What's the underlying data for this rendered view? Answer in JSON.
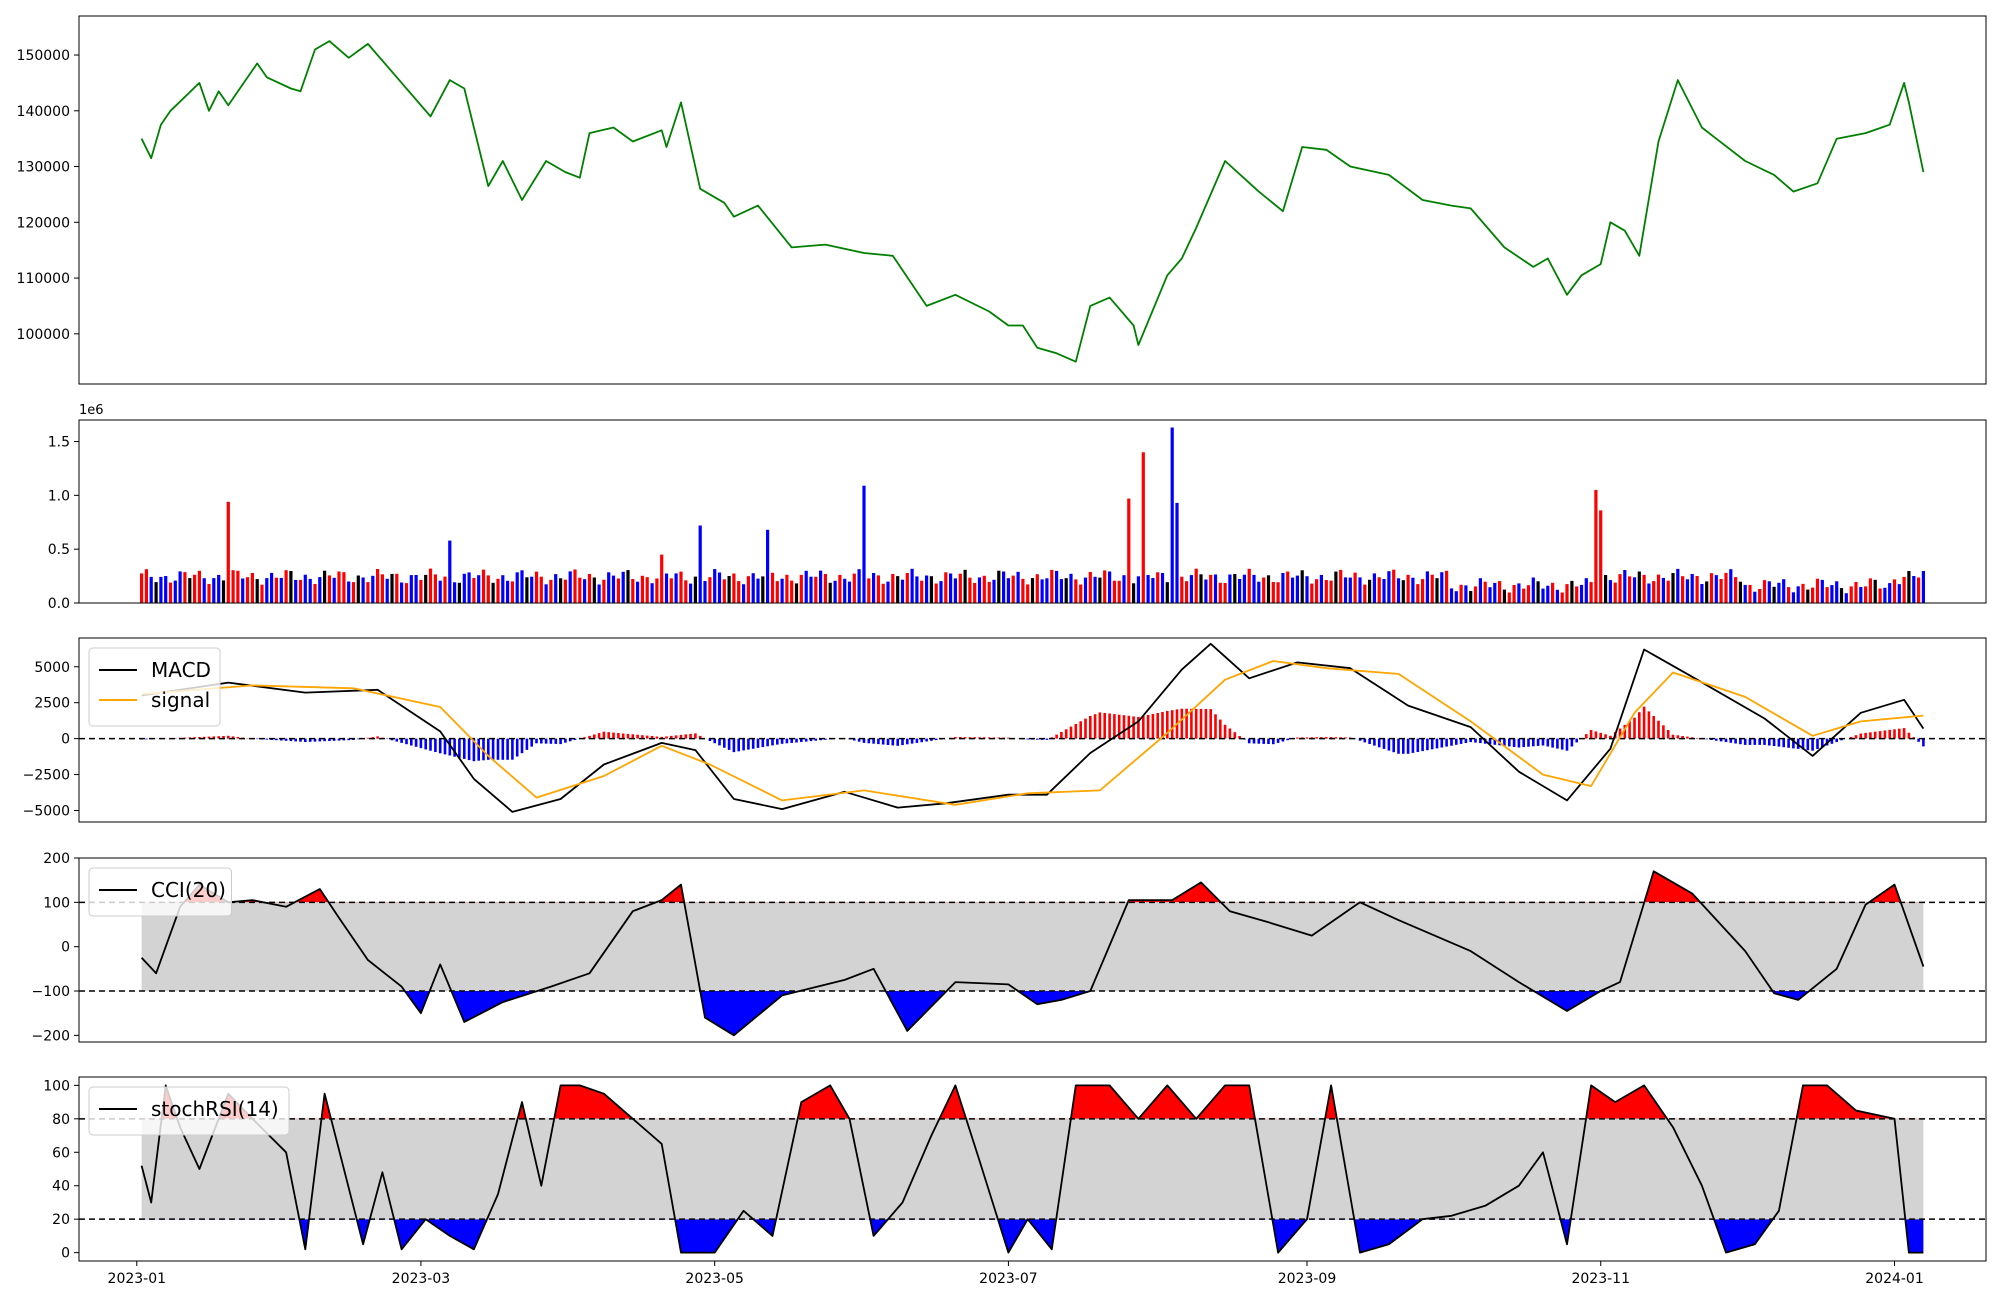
{
  "colors": {
    "price_line": "#008000",
    "volume_up": "#ff0000",
    "volume_down": "#0000ff",
    "volume_flat": "#000000",
    "macd_line": "#000000",
    "signal_line": "#ffa500",
    "hist_pos": "#ff0000",
    "hist_neg": "#0000ff",
    "band_fill": "#d3d3d3",
    "overbought_fill": "#ff0000",
    "oversold_fill": "#0000ff",
    "indicator_line": "#000000"
  },
  "chart_data": [
    {
      "type": "line",
      "panel": "price",
      "ylim": [
        91000,
        157000
      ],
      "yticks": [
        100000,
        110000,
        120000,
        130000,
        140000,
        150000
      ],
      "ytick_labels": [
        "100000",
        "110000",
        "120000",
        "130000",
        "140000",
        "150000"
      ],
      "series": [
        {
          "x": [
            "2023-01-02",
            "2023-01-04",
            "2023-01-06",
            "2023-01-08",
            "2023-01-14",
            "2023-01-16",
            "2023-01-18",
            "2023-01-20",
            "2023-01-26",
            "2023-01-28",
            "2023-02-02",
            "2023-02-04",
            "2023-02-07",
            "2023-02-10",
            "2023-02-14",
            "2023-02-18",
            "2023-02-22",
            "2023-02-24",
            "2023-03-03",
            "2023-03-07",
            "2023-03-10",
            "2023-03-15",
            "2023-03-18",
            "2023-03-22",
            "2023-03-27",
            "2023-03-31",
            "2023-04-03",
            "2023-04-05",
            "2023-04-10",
            "2023-04-14",
            "2023-04-20",
            "2023-04-21",
            "2023-04-24",
            "2023-04-28",
            "2023-05-03",
            "2023-05-05",
            "2023-05-10",
            "2023-05-17",
            "2023-05-24",
            "2023-06-01",
            "2023-06-07",
            "2023-06-14",
            "2023-06-20",
            "2023-06-27",
            "2023-07-01",
            "2023-07-04",
            "2023-07-07",
            "2023-07-09",
            "2023-07-11",
            "2023-07-15",
            "2023-07-18",
            "2023-07-22",
            "2023-07-27",
            "2023-07-28",
            "2023-08-03",
            "2023-08-06",
            "2023-08-09",
            "2023-08-15",
            "2023-08-22",
            "2023-08-27",
            "2023-08-31",
            "2023-09-05",
            "2023-09-10",
            "2023-09-18",
            "2023-09-25",
            "2023-10-01",
            "2023-10-05",
            "2023-10-12",
            "2023-10-18",
            "2023-10-21",
            "2023-10-25",
            "2023-10-28",
            "2023-11-01",
            "2023-11-03",
            "2023-11-06",
            "2023-11-09",
            "2023-11-13",
            "2023-11-17",
            "2023-11-22",
            "2023-11-25",
            "2023-12-01",
            "2023-12-07",
            "2023-12-11",
            "2023-12-16",
            "2023-12-20",
            "2023-12-26",
            "2023-12-31",
            "2024-01-03",
            "2024-01-04",
            "2024-01-07"
          ],
          "y": [
            135000,
            131500,
            137500,
            140000,
            145000,
            140000,
            143500,
            141000,
            148500,
            146000,
            144000,
            143500,
            151000,
            152500,
            149500,
            152000,
            148000,
            146000,
            139000,
            145500,
            144000,
            126500,
            131000,
            124000,
            131000,
            129000,
            128000,
            136000,
            137000,
            134500,
            136500,
            133500,
            141500,
            126000,
            123500,
            121000,
            123000,
            115500,
            116000,
            114500,
            114000,
            105000,
            107000,
            104000,
            101500,
            101500,
            97500,
            97000,
            96500,
            95000,
            105000,
            106500,
            101500,
            98000,
            110500,
            113500,
            119000,
            131000,
            125500,
            122000,
            133500,
            133000,
            130000,
            128500,
            124000,
            123000,
            122500,
            115500,
            112000,
            113500,
            107000,
            110500,
            112500,
            120000,
            118500,
            114000,
            134500,
            145500,
            137000,
            135000,
            131000,
            128500,
            125500,
            127000,
            135000,
            136000,
            137500,
            145000,
            141500,
            129000
          ]
        }
      ]
    },
    {
      "type": "bar",
      "panel": "volume",
      "ylim": [
        0,
        1.7
      ],
      "yticks": [
        0.0,
        0.5,
        1.0,
        1.5
      ],
      "ytick_labels": [
        "0.0",
        "0.5",
        "1.0",
        "1.5"
      ],
      "scale_label": "1e6",
      "unit_multiplier": 1000000,
      "x": [
        "2023-01-20",
        "2023-03-07",
        "2023-04-20",
        "2023-04-28",
        "2023-05-12",
        "2023-06-01",
        "2023-07-26",
        "2023-07-29",
        "2023-08-04",
        "2023-08-05",
        "2023-10-31",
        "2023-11-01"
      ],
      "values": [
        0.94,
        0.58,
        0.45,
        0.72,
        0.68,
        1.09,
        0.97,
        1.4,
        1.63,
        0.93,
        1.05,
        0.86
      ],
      "colors": [
        "up",
        "down",
        "up",
        "down",
        "down",
        "down",
        "up",
        "up",
        "down",
        "down",
        "up",
        "up"
      ],
      "baseline_note": "daily bars, typical 0.1–0.4 × 1e6, alternating up/down"
    },
    {
      "type": "line",
      "panel": "macd",
      "ylim": [
        -5800,
        7000
      ],
      "yticks": [
        -5000,
        -2500,
        0,
        2500,
        5000
      ],
      "ytick_labels": [
        "−5000",
        "−2500",
        "0",
        "2500",
        "5000"
      ],
      "legend": [
        "MACD",
        "signal"
      ],
      "legend_position": "upper left",
      "zero_line": 0,
      "series": [
        {
          "name": "MACD",
          "x": [
            "2023-01-02",
            "2023-01-20",
            "2023-02-05",
            "2023-02-20",
            "2023-03-05",
            "2023-03-12",
            "2023-03-20",
            "2023-03-30",
            "2023-04-08",
            "2023-04-20",
            "2023-04-27",
            "2023-05-05",
            "2023-05-15",
            "2023-05-28",
            "2023-06-08",
            "2023-06-18",
            "2023-07-01",
            "2023-07-09",
            "2023-07-18",
            "2023-07-28",
            "2023-08-06",
            "2023-08-12",
            "2023-08-20",
            "2023-08-30",
            "2023-09-10",
            "2023-09-22",
            "2023-10-05",
            "2023-10-15",
            "2023-10-25",
            "2023-11-03",
            "2023-11-10",
            "2023-11-20",
            "2023-12-05",
            "2023-12-15",
            "2023-12-25",
            "2024-01-03",
            "2024-01-07"
          ],
          "y": [
            3000,
            3900,
            3200,
            3400,
            500,
            -2800,
            -5100,
            -4200,
            -1800,
            -300,
            -800,
            -4200,
            -4900,
            -3700,
            -4800,
            -4500,
            -3900,
            -3900,
            -1000,
            1200,
            4800,
            6600,
            4200,
            5300,
            4900,
            2300,
            800,
            -2300,
            -4300,
            -700,
            6200,
            4300,
            1400,
            -1200,
            1800,
            2700,
            700
          ]
        },
        {
          "name": "signal",
          "x": [
            "2023-01-02",
            "2023-01-25",
            "2023-02-15",
            "2023-03-05",
            "2023-03-15",
            "2023-03-25",
            "2023-04-08",
            "2023-04-20",
            "2023-04-30",
            "2023-05-15",
            "2023-06-01",
            "2023-06-20",
            "2023-07-05",
            "2023-07-20",
            "2023-08-03",
            "2023-08-15",
            "2023-08-25",
            "2023-09-05",
            "2023-09-20",
            "2023-10-05",
            "2023-10-20",
            "2023-10-30",
            "2023-11-08",
            "2023-11-16",
            "2023-12-01",
            "2023-12-15",
            "2023-12-25",
            "2024-01-07"
          ],
          "y": [
            3100,
            3700,
            3500,
            2200,
            -1200,
            -4100,
            -2600,
            -500,
            -1800,
            -4300,
            -3600,
            -4600,
            -3800,
            -3600,
            400,
            4100,
            5400,
            4900,
            4500,
            1200,
            -2500,
            -3300,
            1800,
            4600,
            2900,
            200,
            1200,
            1600
          ]
        }
      ]
    },
    {
      "type": "area",
      "panel": "cci",
      "ylim": [
        -215,
        200
      ],
      "yticks": [
        -200,
        -100,
        0,
        100,
        200
      ],
      "ytick_labels": [
        "−200",
        "−100",
        "0",
        "100",
        "200"
      ],
      "legend": [
        "CCI(20)"
      ],
      "legend_position": "upper left",
      "upper_threshold": 100,
      "lower_threshold": -100,
      "series": [
        {
          "name": "CCI(20)",
          "x": [
            "2023-01-02",
            "2023-01-05",
            "2023-01-10",
            "2023-01-14",
            "2023-01-20",
            "2023-01-25",
            "2023-02-01",
            "2023-02-08",
            "2023-02-12",
            "2023-02-18",
            "2023-02-25",
            "2023-03-01",
            "2023-03-05",
            "2023-03-10",
            "2023-03-18",
            "2023-03-28",
            "2023-04-05",
            "2023-04-14",
            "2023-04-20",
            "2023-04-24",
            "2023-04-29",
            "2023-05-05",
            "2023-05-15",
            "2023-05-28",
            "2023-06-03",
            "2023-06-10",
            "2023-06-20",
            "2023-07-01",
            "2023-07-07",
            "2023-07-12",
            "2023-07-18",
            "2023-07-26",
            "2023-08-04",
            "2023-08-10",
            "2023-08-16",
            "2023-08-24",
            "2023-09-02",
            "2023-09-12",
            "2023-09-20",
            "2023-10-05",
            "2023-10-15",
            "2023-10-25",
            "2023-11-01",
            "2023-11-05",
            "2023-11-12",
            "2023-11-20",
            "2023-12-01",
            "2023-12-07",
            "2023-12-12",
            "2023-12-20",
            "2023-12-26",
            "2024-01-01",
            "2024-01-07"
          ],
          "y": [
            -25,
            -60,
            90,
            140,
            100,
            105,
            90,
            130,
            65,
            -30,
            -90,
            -150,
            -40,
            -170,
            -125,
            -90,
            -60,
            80,
            105,
            140,
            -160,
            -200,
            -110,
            -75,
            -50,
            -190,
            -80,
            -85,
            -130,
            -120,
            -100,
            105,
            105,
            145,
            80,
            55,
            25,
            100,
            60,
            -10,
            -80,
            -145,
            -100,
            -80,
            170,
            120,
            -10,
            -105,
            -120,
            -50,
            95,
            140,
            -45
          ]
        }
      ]
    },
    {
      "type": "area",
      "panel": "stochrsi",
      "ylim": [
        -5,
        105
      ],
      "yticks": [
        0,
        20,
        40,
        60,
        80,
        100
      ],
      "ytick_labels": [
        "0",
        "20",
        "40",
        "60",
        "80",
        "100"
      ],
      "legend": [
        "stochRSI(14)"
      ],
      "legend_position": "upper left",
      "upper_threshold": 80,
      "lower_threshold": 20,
      "series": [
        {
          "name": "stochRSI(14)",
          "x": [
            "2023-01-02",
            "2023-01-04",
            "2023-01-07",
            "2023-01-10",
            "2023-01-14",
            "2023-01-20",
            "2023-01-25",
            "2023-02-01",
            "2023-02-05",
            "2023-02-09",
            "2023-02-13",
            "2023-02-17",
            "2023-02-21",
            "2023-02-25",
            "2023-03-02",
            "2023-03-07",
            "2023-03-12",
            "2023-03-17",
            "2023-03-22",
            "2023-03-26",
            "2023-03-30",
            "2023-04-03",
            "2023-04-08",
            "2023-04-14",
            "2023-04-20",
            "2023-04-24",
            "2023-05-01",
            "2023-05-07",
            "2023-05-13",
            "2023-05-19",
            "2023-05-25",
            "2023-05-29",
            "2023-06-03",
            "2023-06-09",
            "2023-06-15",
            "2023-06-20",
            "2023-06-25",
            "2023-07-01",
            "2023-07-05",
            "2023-07-10",
            "2023-07-15",
            "2023-07-22",
            "2023-07-28",
            "2023-08-03",
            "2023-08-09",
            "2023-08-15",
            "2023-08-20",
            "2023-08-26",
            "2023-09-01",
            "2023-09-06",
            "2023-09-12",
            "2023-09-18",
            "2023-09-25",
            "2023-10-01",
            "2023-10-08",
            "2023-10-15",
            "2023-10-20",
            "2023-10-25",
            "2023-10-30",
            "2023-11-04",
            "2023-11-10",
            "2023-11-16",
            "2023-11-22",
            "2023-11-27",
            "2023-12-03",
            "2023-12-08",
            "2023-12-13",
            "2023-12-18",
            "2023-12-24",
            "2024-01-01",
            "2024-01-04",
            "2024-01-07"
          ],
          "y": [
            52,
            30,
            100,
            75,
            50,
            95,
            80,
            60,
            2,
            95,
            50,
            5,
            48,
            2,
            20,
            10,
            2,
            35,
            90,
            40,
            100,
            100,
            95,
            80,
            65,
            0,
            0,
            25,
            10,
            90,
            100,
            80,
            10,
            30,
            70,
            100,
            55,
            0,
            20,
            2,
            100,
            100,
            80,
            100,
            80,
            100,
            100,
            0,
            20,
            100,
            0,
            5,
            20,
            22,
            28,
            40,
            60,
            5,
            100,
            90,
            100,
            75,
            40,
            0,
            5,
            25,
            100,
            100,
            85,
            80,
            0,
            0
          ]
        }
      ]
    },
    {
      "type": "axis",
      "panel": "shared-x",
      "xlim": [
        "2022-12-20",
        "2024-01-20"
      ],
      "xticks": [
        "2023-01-01",
        "2023-03-01",
        "2023-05-01",
        "2023-07-01",
        "2023-09-01",
        "2023-11-01",
        "2024-01-01"
      ],
      "xtick_labels": [
        "2023-01",
        "2023-03",
        "2023-05",
        "2023-07",
        "2023-09",
        "2023-11",
        "2024-01"
      ]
    }
  ]
}
